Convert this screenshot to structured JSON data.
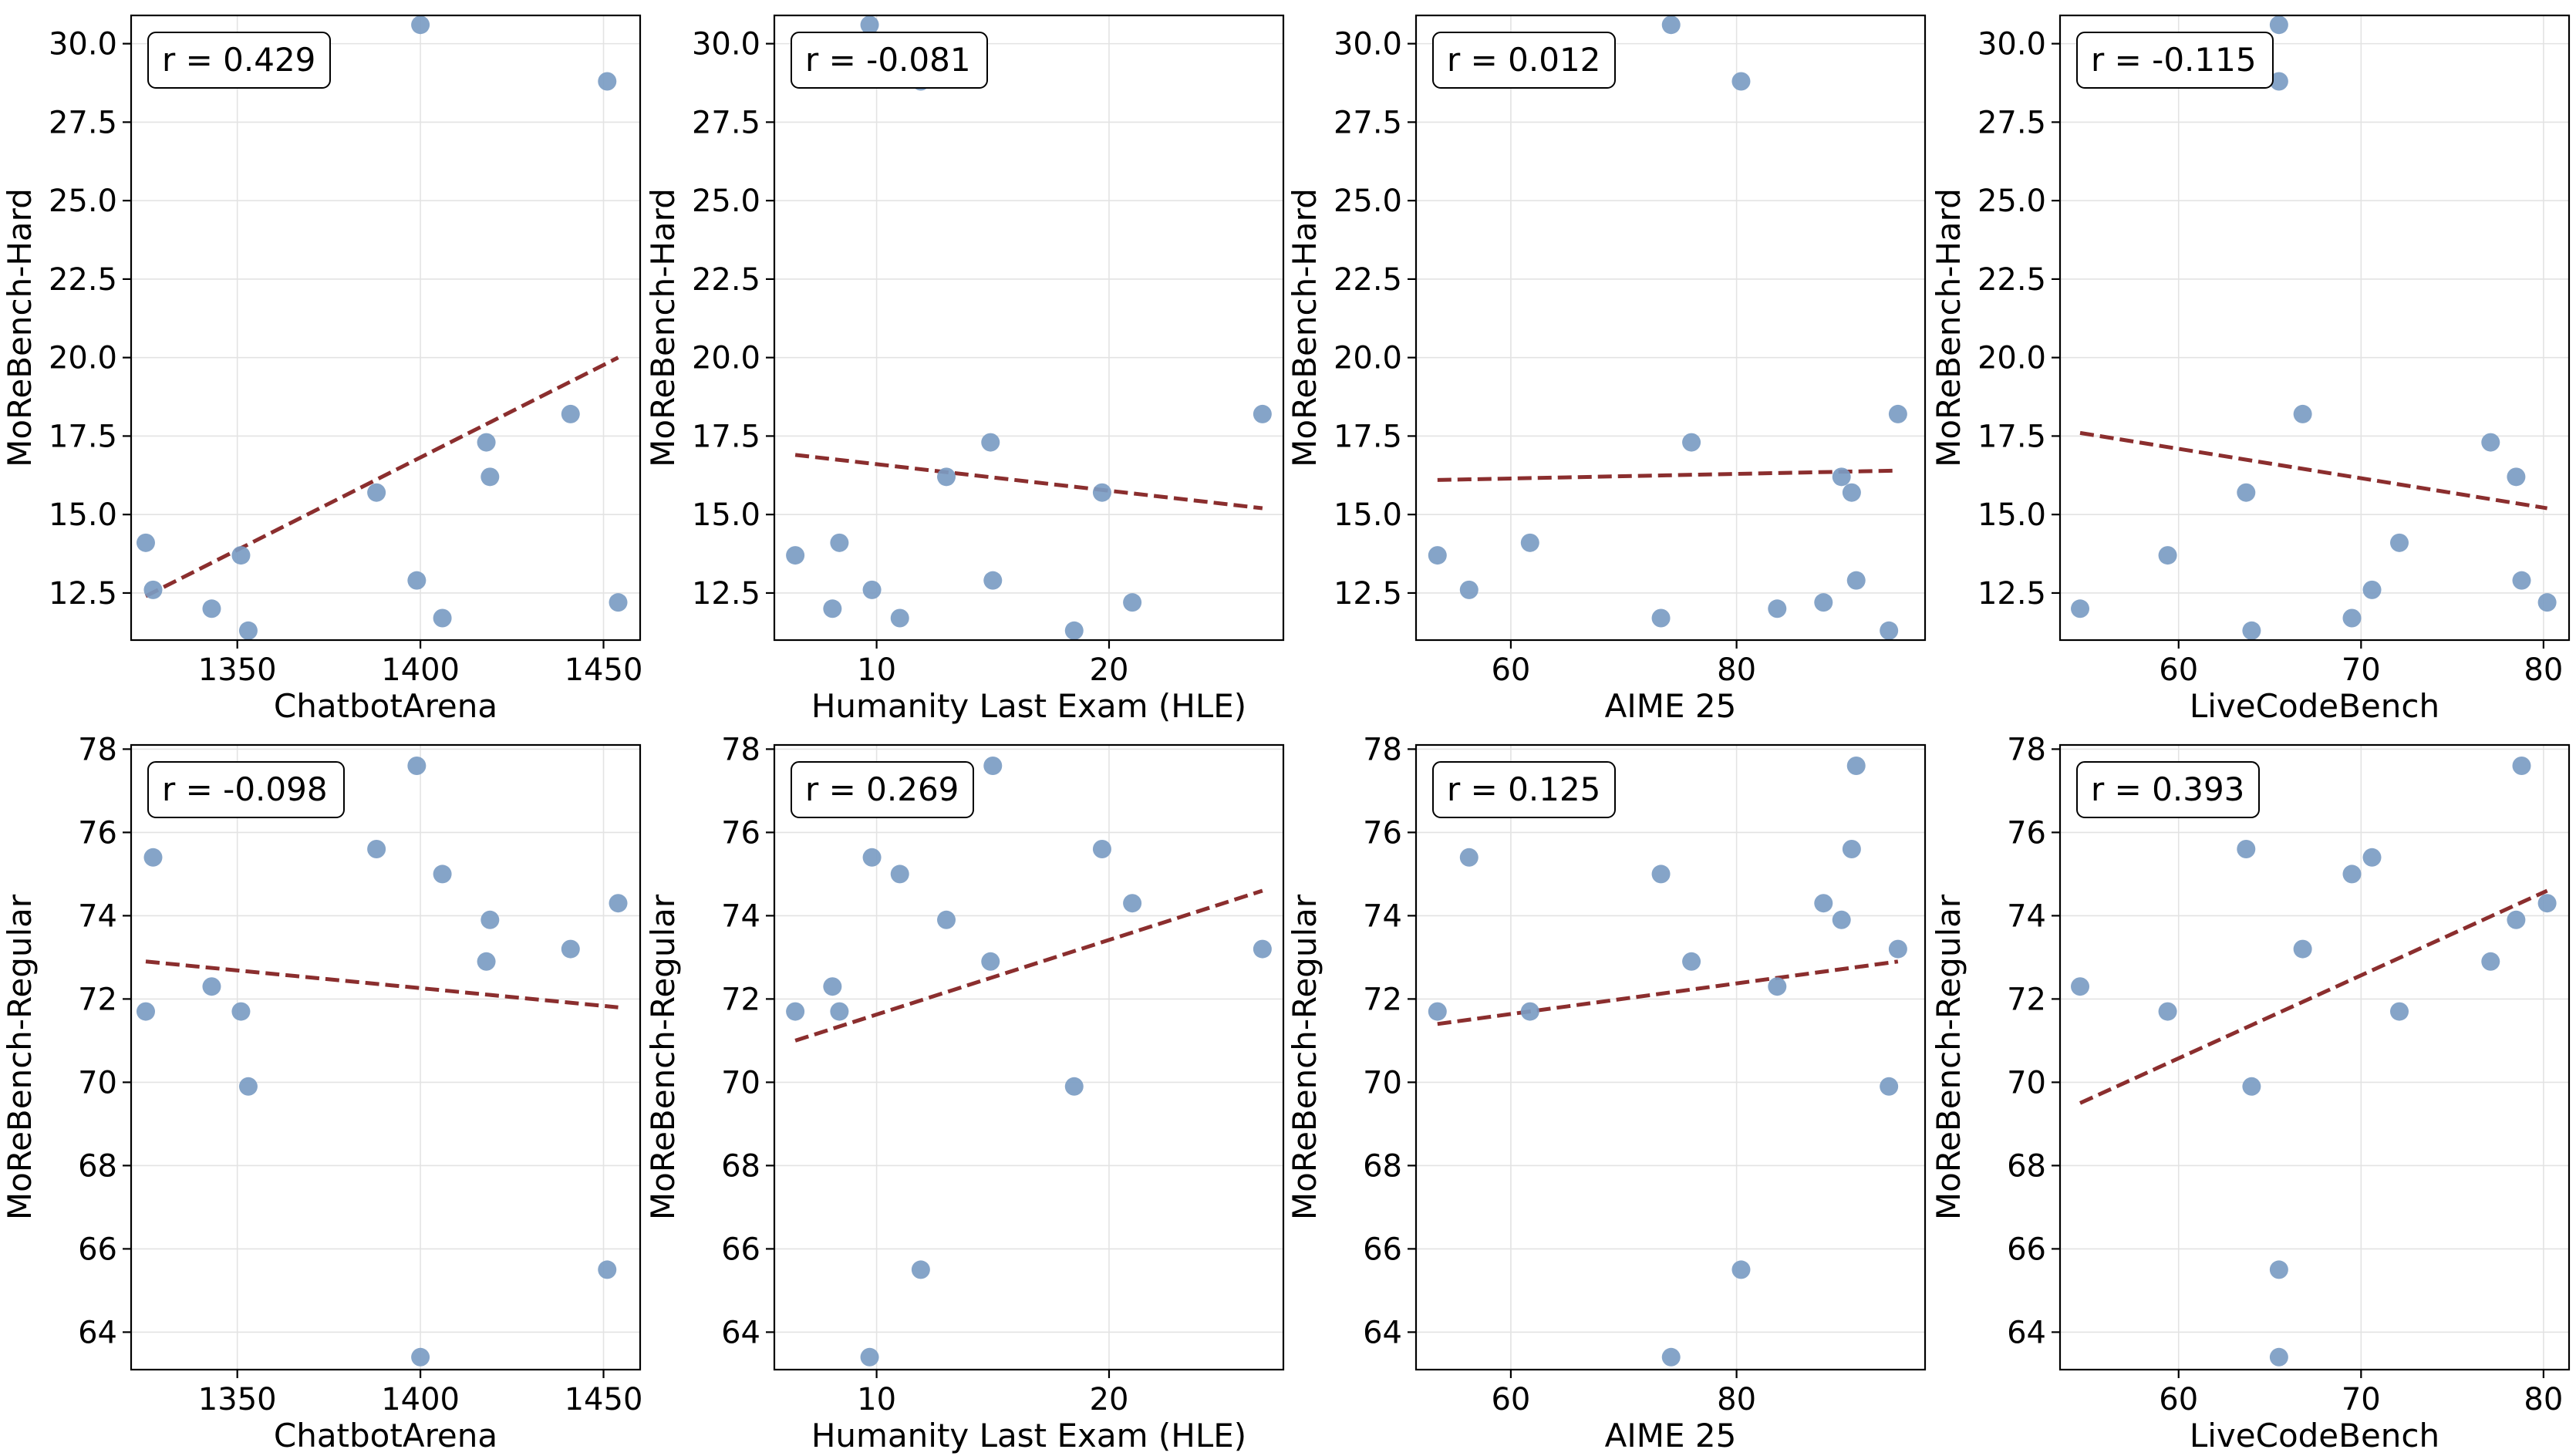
{
  "chart_data": [
    {
      "type": "scatter",
      "title": "",
      "xlabel": "ChatbotArena",
      "ylabel": "MoReBench-Hard",
      "annotation": "r = 0.429",
      "xlim": [
        1321,
        1460
      ],
      "ylim": [
        11.0,
        30.9
      ],
      "xticks": [
        1350,
        1400,
        1450
      ],
      "xtick_labels": [
        "1350",
        "1400",
        "1450"
      ],
      "yticks": [
        12.5,
        15.0,
        17.5,
        20.0,
        22.5,
        25.0,
        27.5,
        30.0
      ],
      "ytick_labels": [
        "12.5",
        "15.0",
        "17.5",
        "20.0",
        "22.5",
        "25.0",
        "27.5",
        "30.0"
      ],
      "x": [
        1325,
        1327,
        1343,
        1351,
        1353,
        1388,
        1399,
        1400,
        1406,
        1418,
        1419,
        1441,
        1451,
        1454
      ],
      "y": [
        14.1,
        12.6,
        12.0,
        13.7,
        11.3,
        15.7,
        12.9,
        30.6,
        11.7,
        17.3,
        16.2,
        18.2,
        28.8,
        12.2
      ],
      "trendline": {
        "x": [
          1325,
          1454
        ],
        "y": [
          12.4,
          20.0
        ]
      }
    },
    {
      "type": "scatter",
      "title": "",
      "xlabel": "Humanity Last Exam (HLE)",
      "ylabel": "MoReBench-Hard",
      "annotation": "r = -0.081",
      "xlim": [
        5.6,
        27.5
      ],
      "ylim": [
        11.0,
        30.9
      ],
      "xticks": [
        10,
        20
      ],
      "xtick_labels": [
        "10",
        "20"
      ],
      "yticks": [
        12.5,
        15.0,
        17.5,
        20.0,
        22.5,
        25.0,
        27.5,
        30.0
      ],
      "ytick_labels": [
        "12.5",
        "15.0",
        "17.5",
        "20.0",
        "22.5",
        "25.0",
        "27.5",
        "30.0"
      ],
      "x": [
        6.5,
        8.1,
        8.4,
        9.7,
        9.8,
        11.0,
        11.9,
        13.0,
        14.9,
        15.0,
        18.5,
        19.7,
        21.0,
        26.6
      ],
      "y": [
        13.7,
        12.0,
        14.1,
        30.6,
        12.6,
        11.7,
        28.8,
        16.2,
        17.3,
        12.9,
        11.3,
        15.7,
        12.2,
        18.2
      ],
      "trendline": {
        "x": [
          6.5,
          26.6
        ],
        "y": [
          16.9,
          15.2
        ]
      }
    },
    {
      "type": "scatter",
      "title": "",
      "xlabel": "AIME 25",
      "ylabel": "MoReBench-Hard",
      "annotation": "r = 0.012",
      "xlim": [
        51.6,
        96.7
      ],
      "ylim": [
        11.0,
        30.9
      ],
      "xticks": [
        60,
        80
      ],
      "xtick_labels": [
        "60",
        "80"
      ],
      "yticks": [
        12.5,
        15.0,
        17.5,
        20.0,
        22.5,
        25.0,
        27.5,
        30.0
      ],
      "ytick_labels": [
        "12.5",
        "15.0",
        "17.5",
        "20.0",
        "22.5",
        "25.0",
        "27.5",
        "30.0"
      ],
      "x": [
        53.5,
        56.3,
        61.7,
        73.3,
        74.2,
        76.0,
        80.4,
        83.6,
        87.7,
        89.3,
        90.2,
        90.6,
        93.5,
        94.3
      ],
      "y": [
        13.7,
        12.6,
        14.1,
        11.7,
        30.6,
        17.3,
        28.8,
        12.0,
        12.2,
        16.2,
        15.7,
        12.9,
        11.3,
        18.2
      ],
      "trendline": {
        "x": [
          53.5,
          94.3
        ],
        "y": [
          16.1,
          16.4
        ]
      }
    },
    {
      "type": "scatter",
      "title": "",
      "xlabel": "LiveCodeBench",
      "ylabel": "MoReBench-Hard",
      "annotation": "r = -0.115",
      "xlim": [
        53.5,
        81.4
      ],
      "ylim": [
        11.0,
        30.9
      ],
      "xticks": [
        60,
        70,
        80
      ],
      "xtick_labels": [
        "60",
        "70",
        "80"
      ],
      "yticks": [
        12.5,
        15.0,
        17.5,
        20.0,
        22.5,
        25.0,
        27.5,
        30.0
      ],
      "ytick_labels": [
        "12.5",
        "15.0",
        "17.5",
        "20.0",
        "22.5",
        "25.0",
        "27.5",
        "30.0"
      ],
      "x": [
        54.6,
        59.4,
        63.7,
        64.0,
        65.5,
        65.5,
        66.8,
        69.5,
        70.6,
        72.1,
        77.1,
        78.5,
        78.8,
        80.2
      ],
      "y": [
        12.0,
        13.7,
        15.7,
        11.3,
        30.6,
        28.8,
        18.2,
        11.7,
        12.6,
        14.1,
        17.3,
        16.2,
        12.9,
        12.2
      ],
      "trendline": {
        "x": [
          54.6,
          80.2
        ],
        "y": [
          17.6,
          15.2
        ]
      }
    },
    {
      "type": "scatter",
      "title": "",
      "xlabel": "ChatbotArena",
      "ylabel": "MoReBench-Regular",
      "annotation": "r = -0.098",
      "xlim": [
        1321,
        1460
      ],
      "ylim": [
        63.1,
        78.1
      ],
      "xticks": [
        1350,
        1400,
        1450
      ],
      "xtick_labels": [
        "1350",
        "1400",
        "1450"
      ],
      "yticks": [
        64,
        66,
        68,
        70,
        72,
        74,
        76,
        78
      ],
      "ytick_labels": [
        "64",
        "66",
        "68",
        "70",
        "72",
        "74",
        "76",
        "78"
      ],
      "x": [
        1325,
        1327,
        1343,
        1351,
        1353,
        1388,
        1399,
        1400,
        1406,
        1418,
        1419,
        1441,
        1451,
        1454
      ],
      "y": [
        71.7,
        75.4,
        72.3,
        71.7,
        69.9,
        75.6,
        77.6,
        63.4,
        75.0,
        72.9,
        73.9,
        73.2,
        65.5,
        74.3
      ],
      "trendline": {
        "x": [
          1325,
          1454
        ],
        "y": [
          72.9,
          71.8
        ]
      }
    },
    {
      "type": "scatter",
      "title": "",
      "xlabel": "Humanity Last Exam (HLE)",
      "ylabel": "MoReBench-Regular",
      "annotation": "r = 0.269",
      "xlim": [
        5.6,
        27.5
      ],
      "ylim": [
        63.1,
        78.1
      ],
      "xticks": [
        10,
        20
      ],
      "xtick_labels": [
        "10",
        "20"
      ],
      "yticks": [
        64,
        66,
        68,
        70,
        72,
        74,
        76,
        78
      ],
      "ytick_labels": [
        "64",
        "66",
        "68",
        "70",
        "72",
        "74",
        "76",
        "78"
      ],
      "x": [
        6.5,
        8.1,
        8.4,
        9.7,
        9.8,
        11.0,
        11.9,
        13.0,
        14.9,
        15.0,
        18.5,
        19.7,
        21.0,
        26.6
      ],
      "y": [
        71.7,
        72.3,
        71.7,
        63.4,
        75.4,
        75.0,
        65.5,
        73.9,
        72.9,
        77.6,
        69.9,
        75.6,
        74.3,
        73.2
      ],
      "trendline": {
        "x": [
          6.5,
          26.6
        ],
        "y": [
          71.0,
          74.6
        ]
      }
    },
    {
      "type": "scatter",
      "title": "",
      "xlabel": "AIME 25",
      "ylabel": "MoReBench-Regular",
      "annotation": "r = 0.125",
      "xlim": [
        51.6,
        96.7
      ],
      "ylim": [
        63.1,
        78.1
      ],
      "xticks": [
        60,
        80
      ],
      "xtick_labels": [
        "60",
        "80"
      ],
      "yticks": [
        64,
        66,
        68,
        70,
        72,
        74,
        76,
        78
      ],
      "ytick_labels": [
        "64",
        "66",
        "68",
        "70",
        "72",
        "74",
        "76",
        "78"
      ],
      "x": [
        53.5,
        56.3,
        61.7,
        73.3,
        74.2,
        76.0,
        80.4,
        83.6,
        87.7,
        89.3,
        90.2,
        90.6,
        93.5,
        94.3
      ],
      "y": [
        71.7,
        75.4,
        71.7,
        75.0,
        63.4,
        72.9,
        65.5,
        72.3,
        74.3,
        73.9,
        75.6,
        77.6,
        69.9,
        73.2
      ],
      "trendline": {
        "x": [
          53.5,
          94.3
        ],
        "y": [
          71.4,
          72.9
        ]
      }
    },
    {
      "type": "scatter",
      "title": "",
      "xlabel": "LiveCodeBench",
      "ylabel": "MoReBench-Regular",
      "annotation": "r = 0.393",
      "xlim": [
        53.5,
        81.4
      ],
      "ylim": [
        63.1,
        78.1
      ],
      "xticks": [
        60,
        70,
        80
      ],
      "xtick_labels": [
        "60",
        "70",
        "80"
      ],
      "yticks": [
        64,
        66,
        68,
        70,
        72,
        74,
        76,
        78
      ],
      "ytick_labels": [
        "64",
        "66",
        "68",
        "70",
        "72",
        "74",
        "76",
        "78"
      ],
      "x": [
        54.6,
        59.4,
        63.7,
        64.0,
        65.5,
        65.5,
        66.8,
        69.5,
        70.6,
        72.1,
        77.1,
        78.5,
        78.8,
        80.2
      ],
      "y": [
        72.3,
        71.7,
        75.6,
        69.9,
        65.5,
        63.4,
        73.2,
        75.0,
        75.4,
        71.7,
        72.9,
        73.9,
        77.6,
        74.3
      ],
      "trendline": {
        "x": [
          54.6,
          80.2
        ],
        "y": [
          69.5,
          74.6
        ]
      }
    }
  ],
  "style": {
    "point_color": "#7b9cc3",
    "trend_color": "#8b2e2e",
    "grid_color": "#e3e3e3",
    "axis_color": "#000000"
  }
}
